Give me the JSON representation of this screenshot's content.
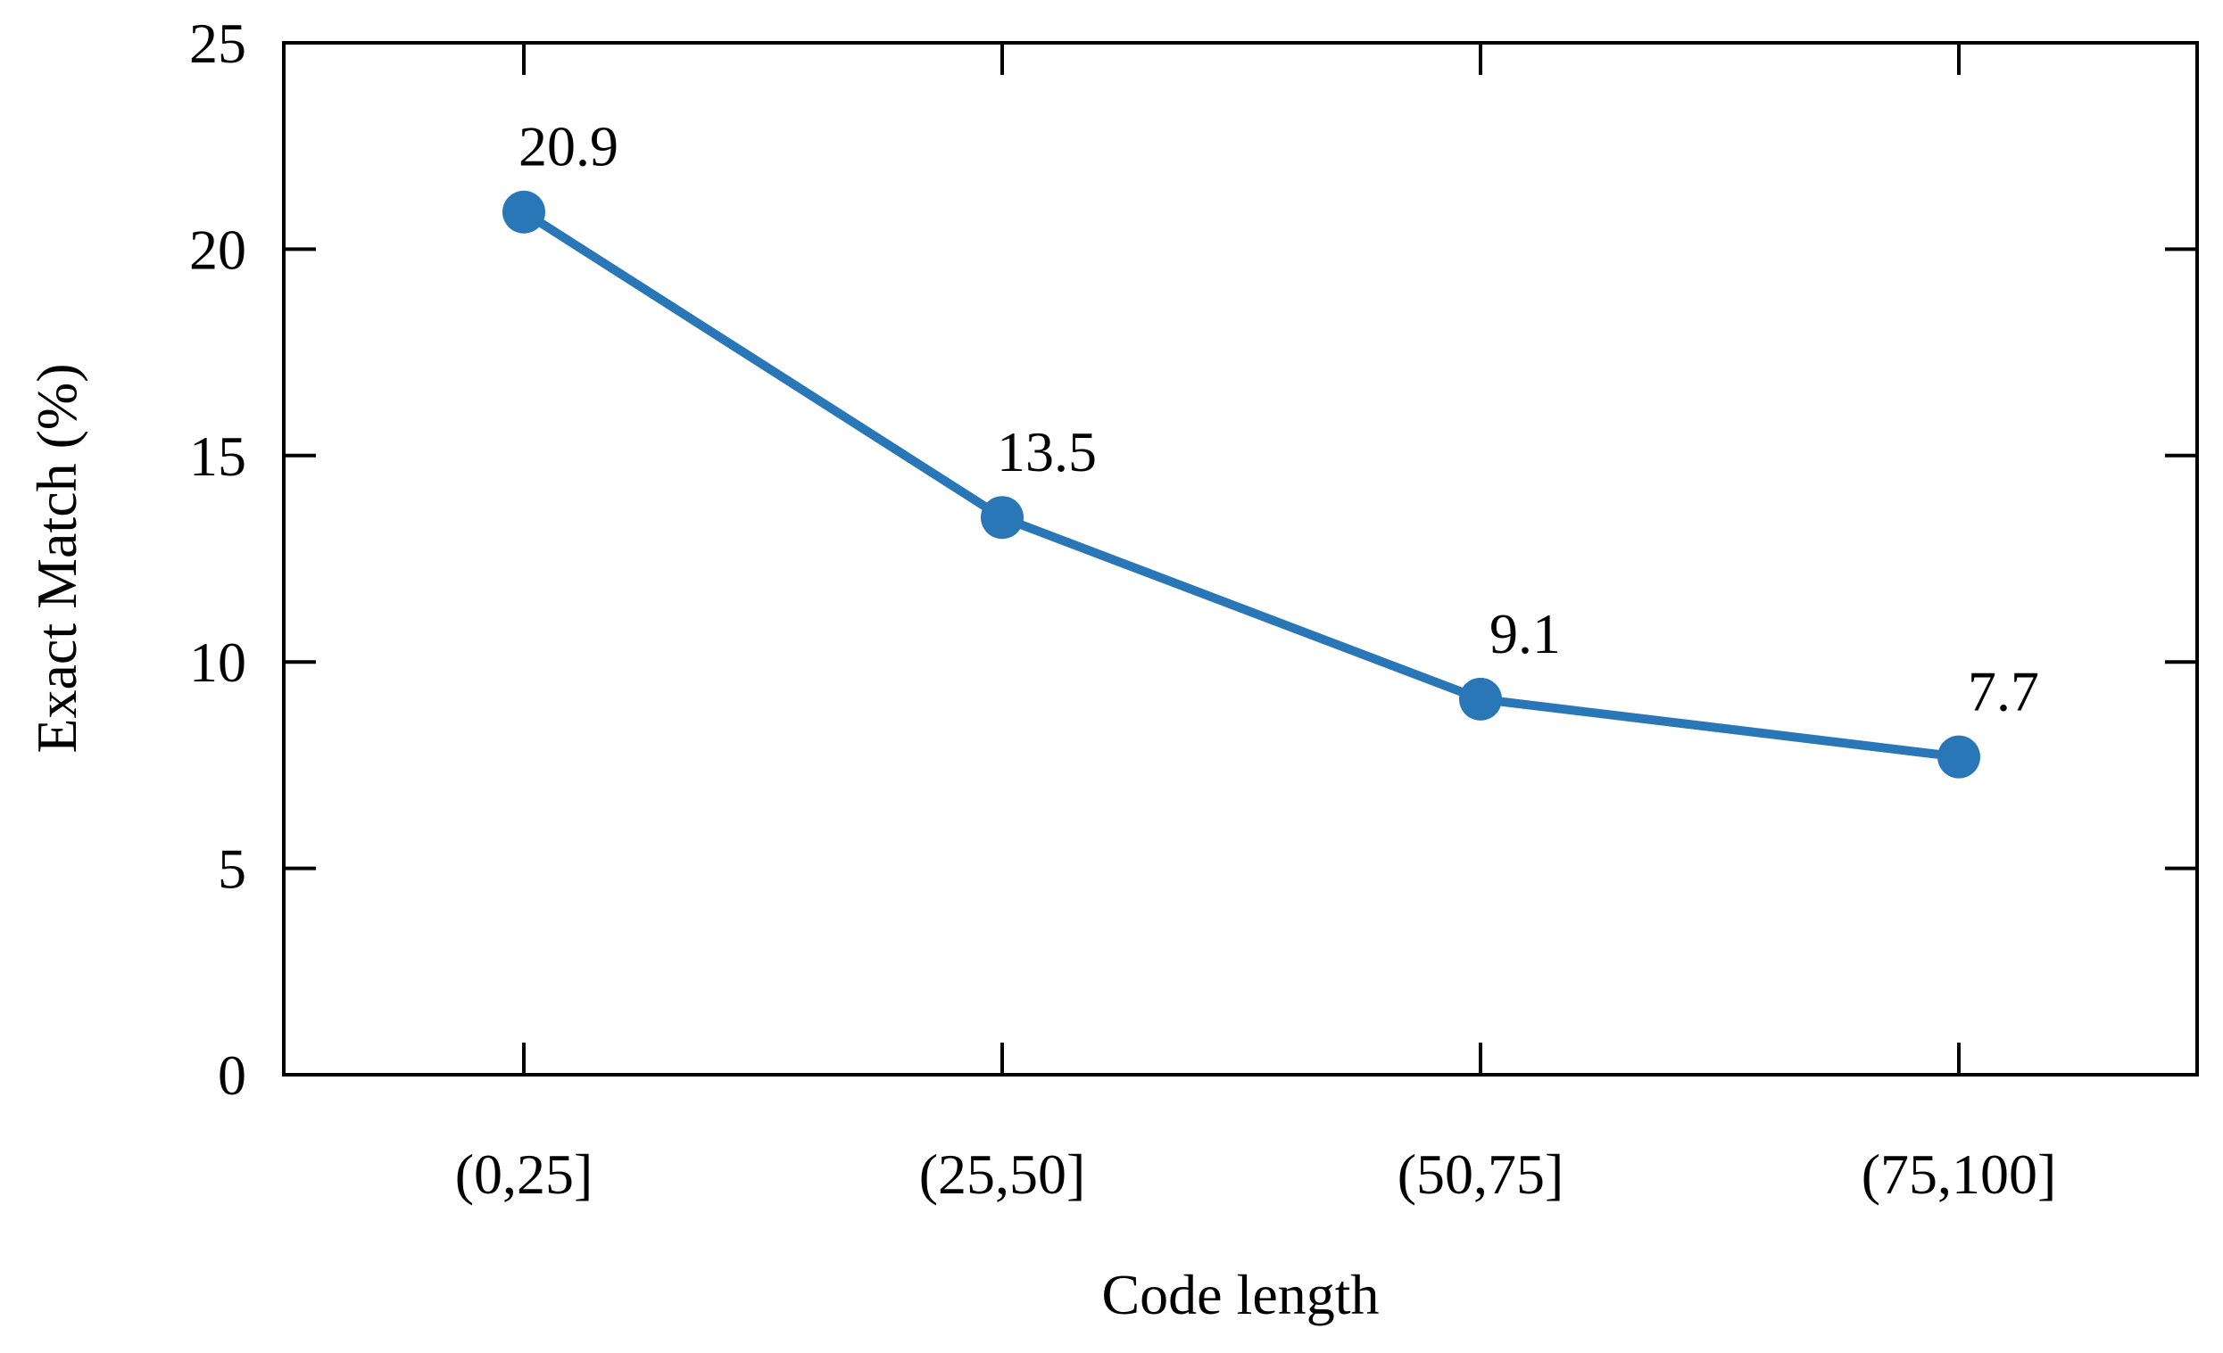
{
  "chart_data": {
    "type": "line",
    "title": "",
    "xlabel": "Code length",
    "ylabel": "Exact Match (%)",
    "categories": [
      "(0,25]",
      "(25,50]",
      "(50,75]",
      "(75,100]"
    ],
    "series": [
      {
        "values": [
          20.9,
          13.5,
          9.1,
          7.7
        ],
        "color": "#2a77b8",
        "marker": "circle"
      }
    ],
    "data_labels": [
      "20.9",
      "13.5",
      "9.1",
      "7.7"
    ],
    "ylim": [
      0,
      25
    ],
    "yticks": [
      0,
      5,
      10,
      15,
      20,
      25
    ],
    "grid": false,
    "legend": "none"
  }
}
